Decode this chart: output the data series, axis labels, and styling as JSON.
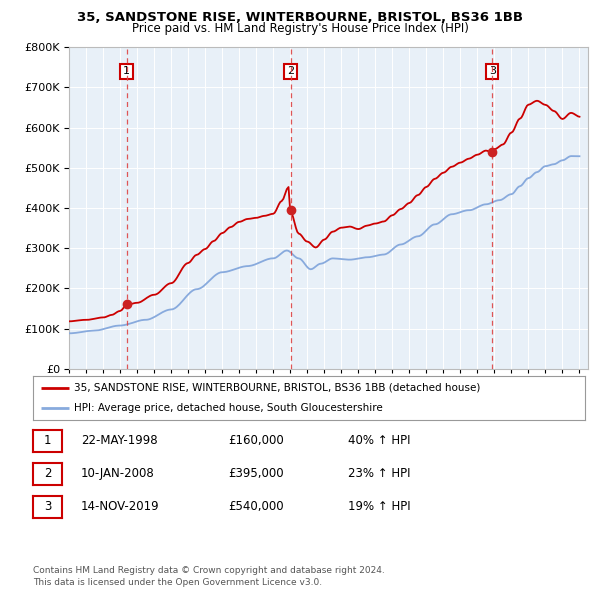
{
  "title_line1": "35, SANDSTONE RISE, WINTERBOURNE, BRISTOL, BS36 1BB",
  "title_line2": "Price paid vs. HM Land Registry's House Price Index (HPI)",
  "bg_color": "#e8f0f8",
  "red_line_color": "#cc0000",
  "blue_line_color": "#88aadd",
  "dashed_line_color": "#dd4444",
  "sale_points": [
    {
      "date_num": 1998.39,
      "price": 160000,
      "label": "1"
    },
    {
      "date_num": 2008.03,
      "price": 395000,
      "label": "2"
    },
    {
      "date_num": 2019.87,
      "price": 540000,
      "label": "3"
    }
  ],
  "legend_red": "35, SANDSTONE RISE, WINTERBOURNE, BRISTOL, BS36 1BB (detached house)",
  "legend_blue": "HPI: Average price, detached house, South Gloucestershire",
  "table_rows": [
    {
      "num": "1",
      "date": "22-MAY-1998",
      "price": "£160,000",
      "hpi": "40% ↑ HPI"
    },
    {
      "num": "2",
      "date": "10-JAN-2008",
      "price": "£395,000",
      "hpi": "23% ↑ HPI"
    },
    {
      "num": "3",
      "date": "14-NOV-2019",
      "price": "£540,000",
      "hpi": "19% ↑ HPI"
    }
  ],
  "footer": "Contains HM Land Registry data © Crown copyright and database right 2024.\nThis data is licensed under the Open Government Licence v3.0.",
  "ylim": [
    0,
    800000
  ],
  "xlim_start": 1995.0,
  "xlim_end": 2025.5
}
